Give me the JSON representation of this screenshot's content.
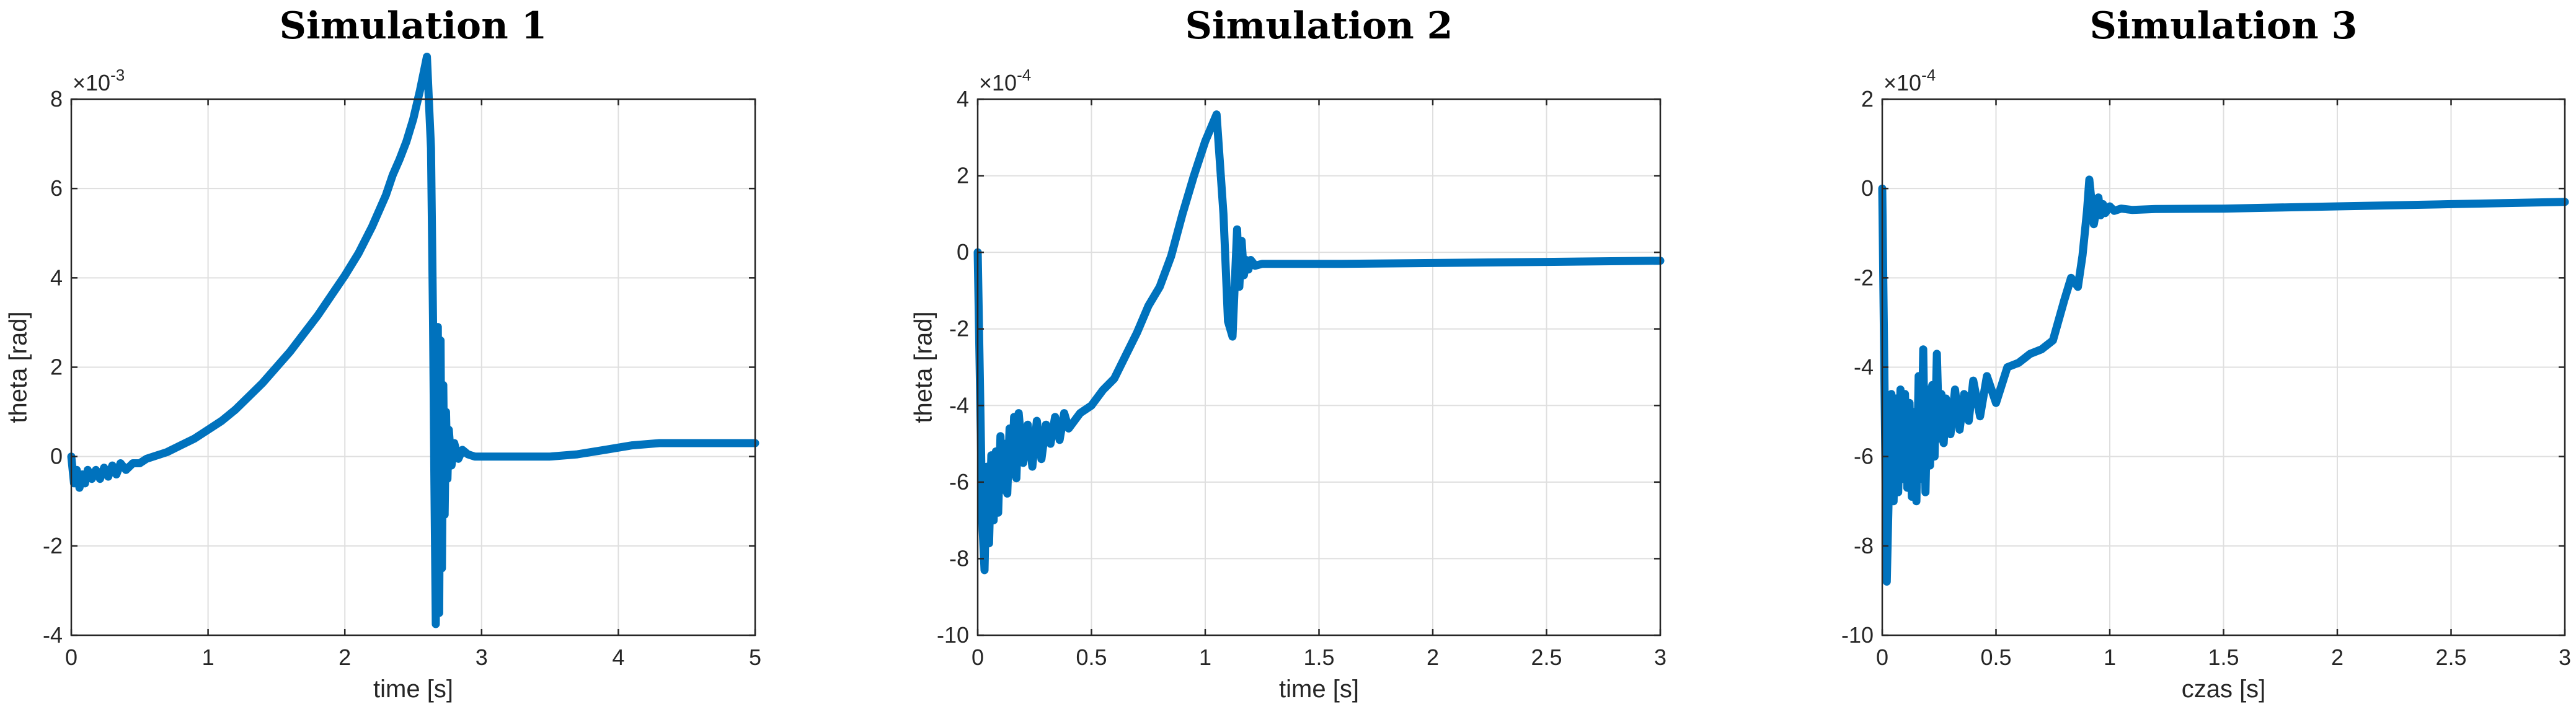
{
  "chart_data": [
    {
      "type": "line",
      "title": "Simulation 1",
      "xlabel": "time [s]",
      "ylabel": "theta [rad]",
      "xlim": [
        0,
        5
      ],
      "ylim": [
        -4,
        8
      ],
      "xticks": [
        0,
        1,
        2,
        3,
        4,
        5
      ],
      "yticks": [
        -4,
        -2,
        0,
        2,
        4,
        6,
        8
      ],
      "xtick_labels": [
        "0",
        "1",
        "2",
        "3",
        "4",
        "5"
      ],
      "ytick_labels": [
        "-4",
        "-2",
        "0",
        "2",
        "4",
        "6",
        "8"
      ],
      "y_exponent_base": "×10",
      "y_exponent_power": "-3",
      "grid": true,
      "color": "#0072BD",
      "series": [
        {
          "name": "theta",
          "x": [
            0,
            0.02,
            0.04,
            0.06,
            0.08,
            0.1,
            0.12,
            0.15,
            0.18,
            0.21,
            0.24,
            0.27,
            0.3,
            0.33,
            0.36,
            0.4,
            0.45,
            0.5,
            0.55,
            0.6,
            0.7,
            0.8,
            0.9,
            1.0,
            1.1,
            1.2,
            1.3,
            1.4,
            1.5,
            1.6,
            1.7,
            1.8,
            1.9,
            2.0,
            2.1,
            2.2,
            2.3,
            2.35,
            2.4,
            2.45,
            2.5,
            2.55,
            2.6,
            2.63,
            2.645,
            2.655,
            2.665,
            2.68,
            2.69,
            2.7,
            2.71,
            2.72,
            2.73,
            2.74,
            2.75,
            2.76,
            2.78,
            2.8,
            2.83,
            2.86,
            2.9,
            2.95,
            3.0,
            3.1,
            3.3,
            3.5,
            3.7,
            3.9,
            4.1,
            4.3,
            4.4,
            4.6,
            4.8,
            5.0
          ],
          "y": [
            0,
            -0.6,
            -0.3,
            -0.7,
            -0.4,
            -0.6,
            -0.3,
            -0.5,
            -0.3,
            -0.5,
            -0.25,
            -0.45,
            -0.2,
            -0.4,
            -0.15,
            -0.3,
            -0.15,
            -0.15,
            -0.05,
            0,
            0.1,
            0.25,
            0.4,
            0.6,
            0.8,
            1.05,
            1.35,
            1.65,
            2.0,
            2.35,
            2.75,
            3.15,
            3.6,
            4.05,
            4.55,
            5.15,
            5.85,
            6.3,
            6.65,
            7.05,
            7.55,
            8.2,
            8.95,
            6.9,
            3.0,
            -0.6,
            -3.75,
            2.9,
            -3.5,
            2.6,
            -2.5,
            1.6,
            -1.3,
            1.0,
            -0.5,
            0.6,
            -0.2,
            0.3,
            -0.05,
            0.15,
            0.05,
            0,
            0,
            0,
            0,
            0,
            0.05,
            0.15,
            0.25,
            0.3,
            0.3,
            0.3,
            0.3,
            0.3
          ]
        }
      ]
    },
    {
      "type": "line",
      "title": "Simulation 2",
      "xlabel": "time [s]",
      "ylabel": "theta [rad]",
      "xlim": [
        0,
        3
      ],
      "ylim": [
        -10,
        4
      ],
      "xticks": [
        0,
        0.5,
        1,
        1.5,
        2,
        2.5,
        3
      ],
      "yticks": [
        -10,
        -8,
        -6,
        -4,
        -2,
        0,
        2,
        4
      ],
      "xtick_labels": [
        "0",
        "0.5",
        "1",
        "1.5",
        "2",
        "2.5",
        "3"
      ],
      "ytick_labels": [
        "-10",
        "-8",
        "-6",
        "-4",
        "-2",
        "0",
        "2",
        "4"
      ],
      "y_exponent_base": "×10",
      "y_exponent_power": "-4",
      "grid": true,
      "color": "#0072BD",
      "series": [
        {
          "name": "theta",
          "x": [
            0,
            0.01,
            0.02,
            0.03,
            0.04,
            0.05,
            0.06,
            0.07,
            0.08,
            0.09,
            0.1,
            0.11,
            0.12,
            0.13,
            0.14,
            0.15,
            0.16,
            0.17,
            0.18,
            0.2,
            0.22,
            0.24,
            0.26,
            0.28,
            0.3,
            0.32,
            0.34,
            0.36,
            0.38,
            0.4,
            0.45,
            0.5,
            0.55,
            0.6,
            0.65,
            0.7,
            0.75,
            0.8,
            0.85,
            0.9,
            0.95,
            1.0,
            1.05,
            1.08,
            1.1,
            1.12,
            1.13,
            1.14,
            1.15,
            1.16,
            1.17,
            1.18,
            1.19,
            1.2,
            1.22,
            1.25,
            1.3,
            1.4,
            1.6,
            2.0,
            2.5,
            3.0
          ],
          "y": [
            0,
            -3.5,
            -7.0,
            -8.3,
            -5.6,
            -7.6,
            -5.3,
            -7.0,
            -5.2,
            -6.8,
            -4.8,
            -6.2,
            -5.0,
            -6.3,
            -4.6,
            -5.8,
            -4.3,
            -5.9,
            -4.2,
            -5.5,
            -4.5,
            -5.6,
            -4.4,
            -5.4,
            -4.5,
            -5.0,
            -4.3,
            -4.9,
            -4.2,
            -4.6,
            -4.2,
            -4.0,
            -3.6,
            -3.3,
            -2.7,
            -2.1,
            -1.4,
            -0.9,
            -0.1,
            1.0,
            2.0,
            2.9,
            3.6,
            1.0,
            -1.8,
            -2.2,
            -0.8,
            0.6,
            -0.9,
            0.3,
            -0.6,
            -0.2,
            -0.45,
            -0.2,
            -0.35,
            -0.3,
            -0.3,
            -0.3,
            -0.3,
            -0.28,
            -0.25,
            -0.22
          ]
        }
      ]
    },
    {
      "type": "line",
      "title": "Simulation 3",
      "xlabel": "czas [s]",
      "ylabel": "",
      "xlim": [
        0,
        3
      ],
      "ylim": [
        -10,
        2
      ],
      "xticks": [
        0,
        0.5,
        1,
        1.5,
        2,
        2.5,
        3
      ],
      "yticks": [
        -10,
        -8,
        -6,
        -4,
        -2,
        0,
        2
      ],
      "xtick_labels": [
        "0",
        "0.5",
        "1",
        "1.5",
        "2",
        "2.5",
        "3"
      ],
      "ytick_labels": [
        "-10",
        "-8",
        "-6",
        "-4",
        "-2",
        "0",
        "2"
      ],
      "y_exponent_base": "×10",
      "y_exponent_power": "-4",
      "grid": true,
      "color": "#0072BD",
      "series": [
        {
          "name": "theta",
          "x": [
            0,
            0.01,
            0.02,
            0.03,
            0.04,
            0.05,
            0.06,
            0.07,
            0.08,
            0.09,
            0.1,
            0.11,
            0.12,
            0.13,
            0.14,
            0.15,
            0.16,
            0.17,
            0.18,
            0.19,
            0.2,
            0.21,
            0.22,
            0.23,
            0.24,
            0.25,
            0.26,
            0.27,
            0.28,
            0.3,
            0.32,
            0.34,
            0.36,
            0.38,
            0.4,
            0.43,
            0.46,
            0.5,
            0.55,
            0.6,
            0.65,
            0.7,
            0.75,
            0.8,
            0.83,
            0.86,
            0.88,
            0.9,
            0.91,
            0.93,
            0.95,
            0.96,
            0.97,
            0.98,
            1.0,
            1.02,
            1.05,
            1.1,
            1.2,
            1.5,
            2.0,
            2.5,
            3.0
          ],
          "y": [
            0,
            -4.5,
            -8.8,
            -6.5,
            -4.6,
            -7.0,
            -4.7,
            -6.8,
            -4.5,
            -6.5,
            -4.6,
            -6.7,
            -4.8,
            -6.9,
            -5.0,
            -7.0,
            -4.2,
            -6.5,
            -3.6,
            -6.8,
            -4.5,
            -6.2,
            -4.4,
            -6.0,
            -3.7,
            -5.6,
            -4.6,
            -5.7,
            -4.7,
            -5.5,
            -4.5,
            -5.4,
            -4.6,
            -5.2,
            -4.3,
            -5.1,
            -4.2,
            -4.8,
            -4.0,
            -3.9,
            -3.7,
            -3.6,
            -3.4,
            -2.5,
            -2.0,
            -2.2,
            -1.5,
            -0.5,
            0.2,
            -0.8,
            -0.2,
            -0.6,
            -0.35,
            -0.55,
            -0.4,
            -0.5,
            -0.45,
            -0.48,
            -0.46,
            -0.45,
            -0.4,
            -0.35,
            -0.3
          ]
        }
      ]
    }
  ]
}
